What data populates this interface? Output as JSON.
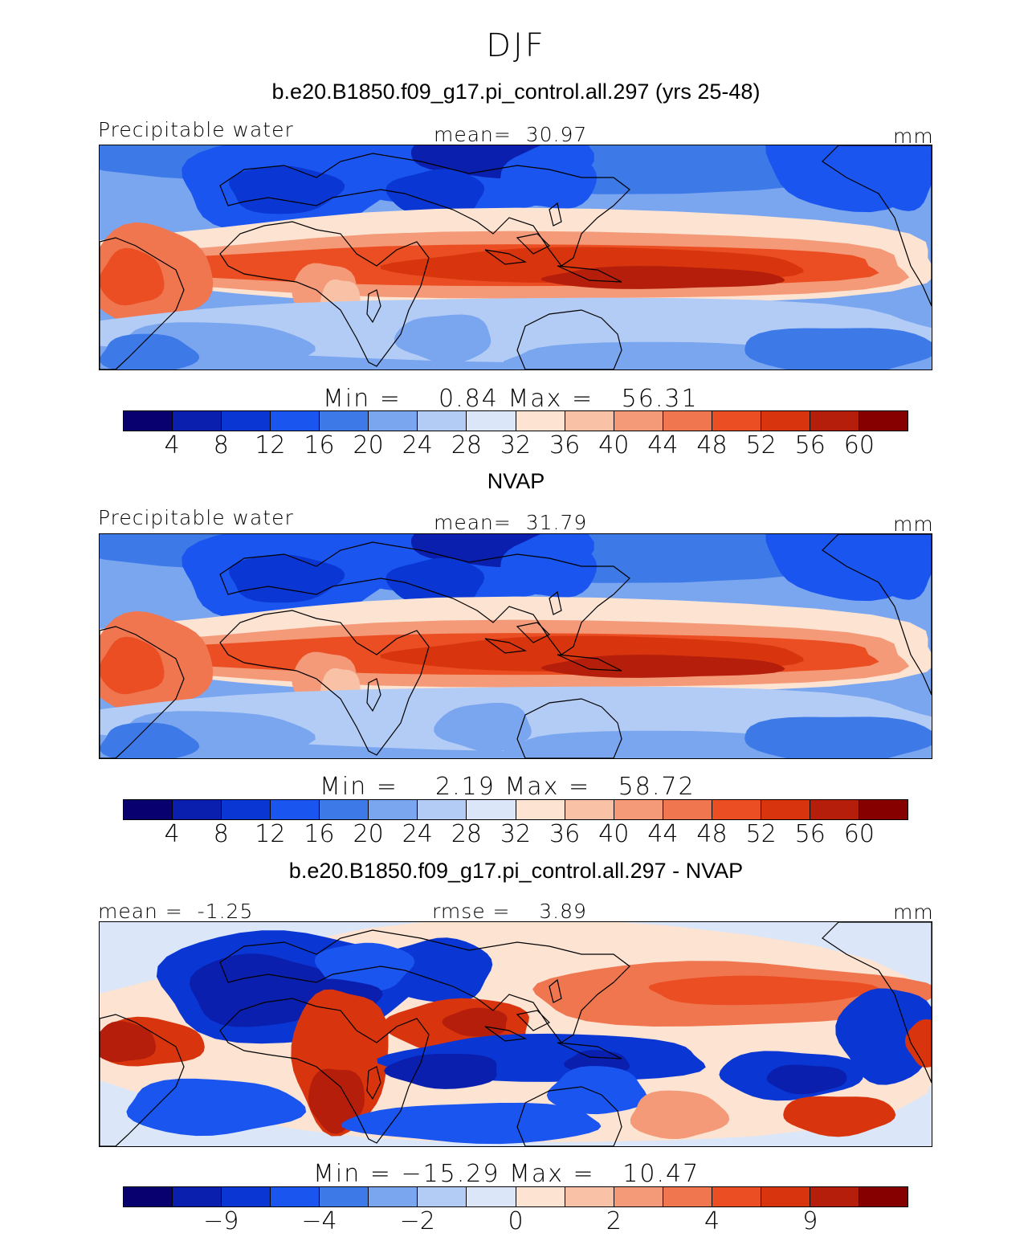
{
  "title": "DJF",
  "panels": [
    {
      "header": "b.e20.B1850.f09_g17.pi_control.all.297 (yrs 25-48)",
      "left_label": "Precipitable water",
      "center_label": "mean=  30.97",
      "right_label": "mm",
      "minmax": "Min =    0.84 Max =   56.31",
      "ticks": [
        "4",
        "8",
        "12",
        "16",
        "20",
        "24",
        "28",
        "32",
        "36",
        "40",
        "44",
        "48",
        "52",
        "56",
        "60"
      ],
      "field": "model"
    },
    {
      "header": "NVAP",
      "left_label": "Precipitable water",
      "center_label": "mean=  31.79",
      "right_label": "mm",
      "minmax": "Min =    2.19 Max =   58.72",
      "ticks": [
        "4",
        "8",
        "12",
        "16",
        "20",
        "24",
        "28",
        "32",
        "36",
        "40",
        "44",
        "48",
        "52",
        "56",
        "60"
      ],
      "field": "obs"
    },
    {
      "header": "b.e20.B1850.f09_g17.pi_control.all.297 - NVAP",
      "left_label": "mean =  -1.25",
      "center_label": "rmse =    3.89",
      "right_label": "mm",
      "minmax": "Min = −15.29 Max =   10.47",
      "ticks": [
        "−9",
        "−4",
        "−2",
        "0",
        "2",
        "4",
        "9"
      ],
      "field": "diff"
    }
  ],
  "colorbar": [
    "#08006e",
    "#0a1fae",
    "#0a37d4",
    "#1a55f0",
    "#3d7ae8",
    "#7aa6f0",
    "#b3ccf5",
    "#dbe7f9",
    "#fde3d2",
    "#f9c2a6",
    "#f49a78",
    "#f07650",
    "#ea4e22",
    "#d8350e",
    "#b41e0a",
    "#870000"
  ]
}
